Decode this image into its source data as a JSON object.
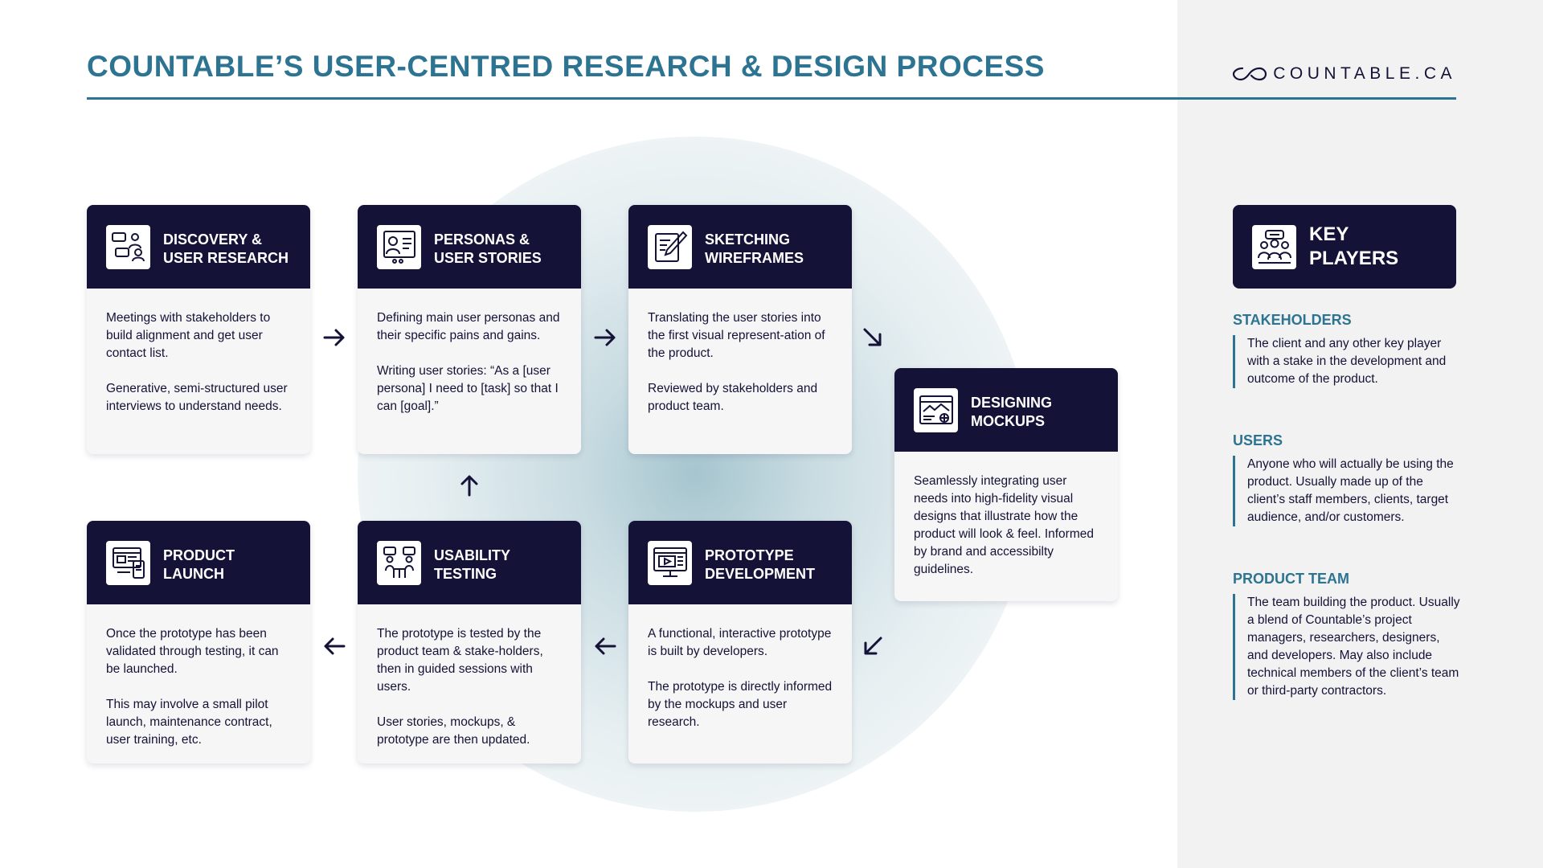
{
  "header": {
    "title": "COUNTABLE’S USER-CENTRED RESEARCH & DESIGN PROCESS",
    "logo_text": "COUNTABLE.CA"
  },
  "colors": {
    "navy": "#141236",
    "teal": "#2c7491",
    "card_bg": "#f6f6f7",
    "panel_bg": "#f2f2f3"
  },
  "steps": [
    {
      "id": "discovery",
      "icon": "chat-people-icon",
      "title": "DISCOVERY &\nUSER RESEARCH",
      "paragraphs": [
        "Meetings with stakeholders to build alignment and get user contact list.",
        "Generative, semi-structured user interviews to understand needs."
      ]
    },
    {
      "id": "personas",
      "icon": "persona-profile-icon",
      "title": "PERSONAS &\nUSER STORIES",
      "paragraphs": [
        "Defining main user personas and their specific pains and gains.",
        "Writing user stories: “As a [user persona] I need to [task] so that I can [goal].”"
      ]
    },
    {
      "id": "sketching",
      "icon": "pencil-sketch-icon",
      "title": "SKETCHING\nWIREFRAMES",
      "paragraphs": [
        "Translating the user stories into the first visual represent-ation of the product.",
        "Reviewed by stakeholders and product team."
      ]
    },
    {
      "id": "mockups",
      "icon": "browser-mockup-icon",
      "title": "DESIGNING\nMOCKUPS",
      "paragraphs": [
        "Seamlessly integrating user needs into high-fidelity visual designs that illustrate how the product will look & feel. Informed by brand and accessibilty guidelines."
      ]
    },
    {
      "id": "prototype",
      "icon": "monitor-video-icon",
      "title": "PROTOTYPE\nDEVELOPMENT",
      "paragraphs": [
        "A functional, interactive prototype is built by developers.",
        "The prototype is directly informed by the mockups and user research."
      ]
    },
    {
      "id": "usability",
      "icon": "people-table-icon",
      "title": "USABILITY\nTESTING",
      "paragraphs": [
        "The prototype is tested by the product team & stake-holders, then in guided sessions with users.",
        "User stories, mockups, & prototype are then updated."
      ]
    },
    {
      "id": "launch",
      "icon": "devices-launch-icon",
      "title": "PRODUCT\nLAUNCH",
      "paragraphs": [
        "Once the prototype has been validated through testing, it can be launched.",
        "This may involve a small pilot launch, maintenance contract, user training, etc."
      ]
    }
  ],
  "key_players": {
    "icon": "team-group-icon",
    "title": "KEY\nPLAYERS",
    "sections": [
      {
        "heading": "STAKEHOLDERS",
        "text": "The client and any other key player with a stake in the development and outcome of the product."
      },
      {
        "heading": "USERS",
        "text": "Anyone who will actually be using the product. Usually made up of the client’s staff members, clients, target audience, and/or customers."
      },
      {
        "heading": "PRODUCT TEAM",
        "text": "The team building the product. Usually a blend of Countable’s project managers, researchers, designers, and developers. May also include technical members of the client’s team or third-party contractors."
      }
    ]
  }
}
